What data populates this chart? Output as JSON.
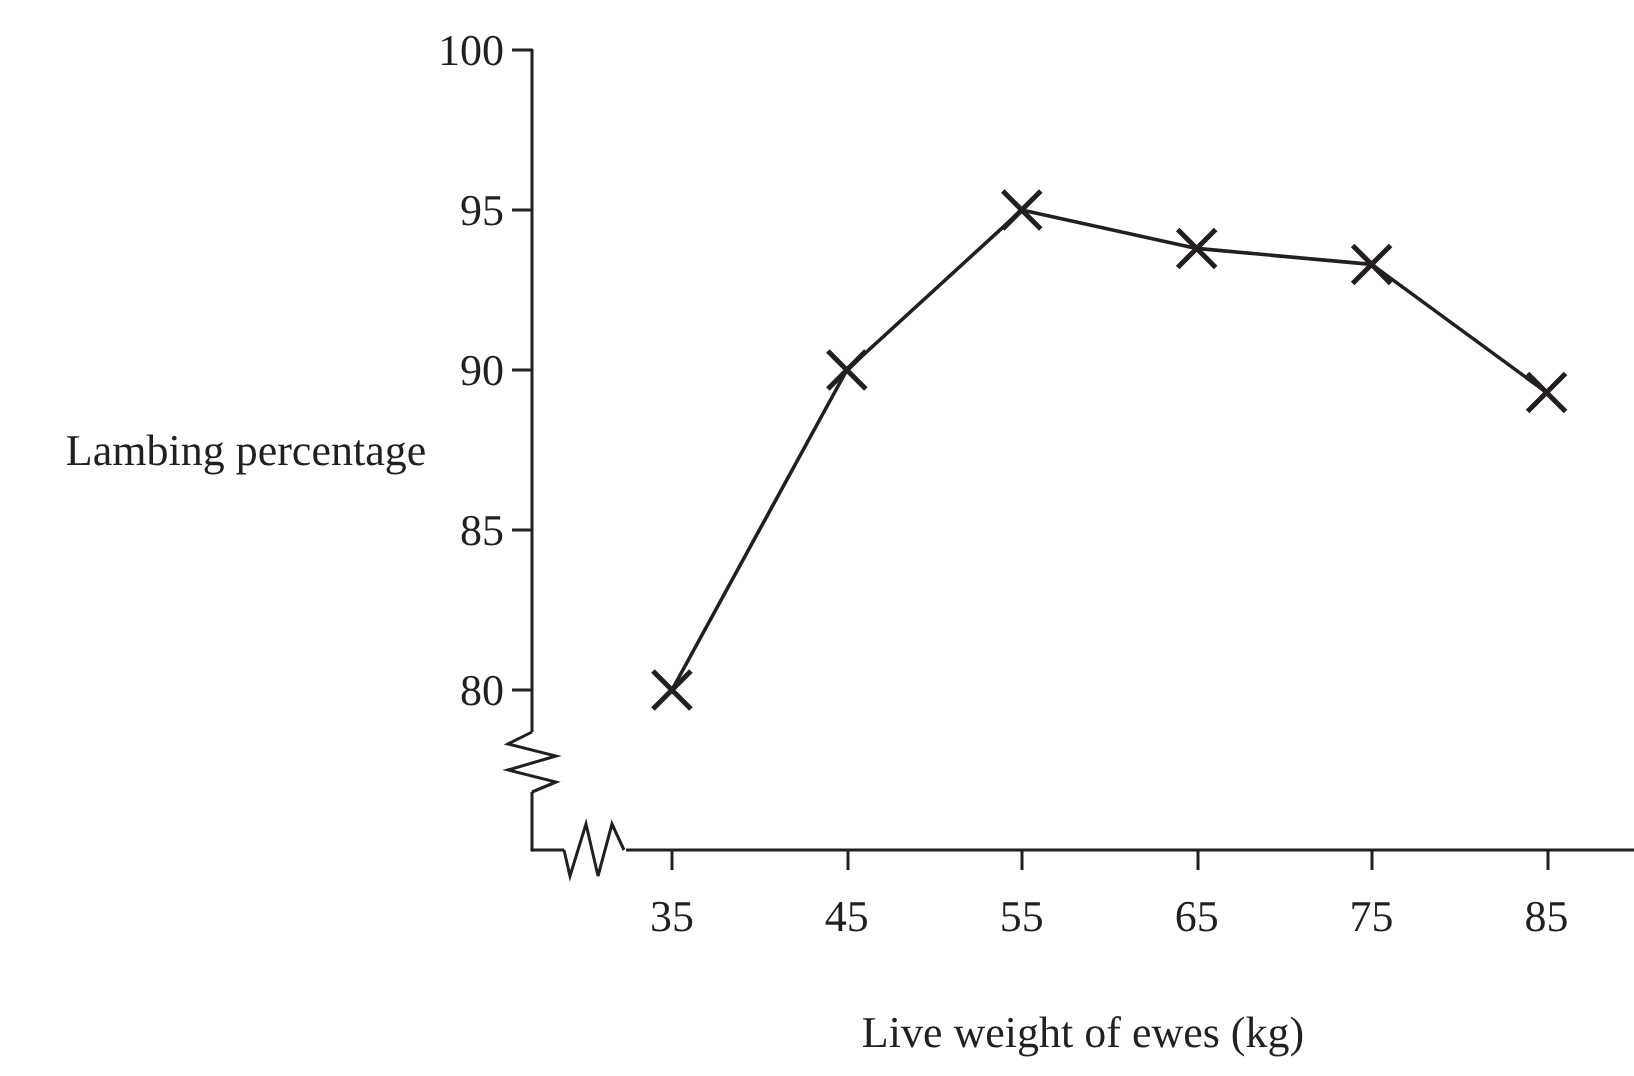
{
  "chart_data": {
    "type": "line",
    "xlabel": "Live weight of ewes (kg)",
    "ylabel": "Lambing percentage",
    "x": [
      35,
      45,
      55,
      65,
      75,
      85
    ],
    "series": [
      {
        "color": "#231f20",
        "values": [
          80,
          90,
          95,
          93.8,
          93.3,
          89.3
        ]
      }
    ],
    "xlim": [
      27,
      90
    ],
    "xticks": [
      35,
      45,
      55,
      65,
      75,
      85
    ],
    "ylim": [
      75,
      100
    ],
    "yticks": [
      80,
      85,
      90,
      95,
      100
    ],
    "marker": "cross",
    "line_style": "solid",
    "grid": false
  }
}
